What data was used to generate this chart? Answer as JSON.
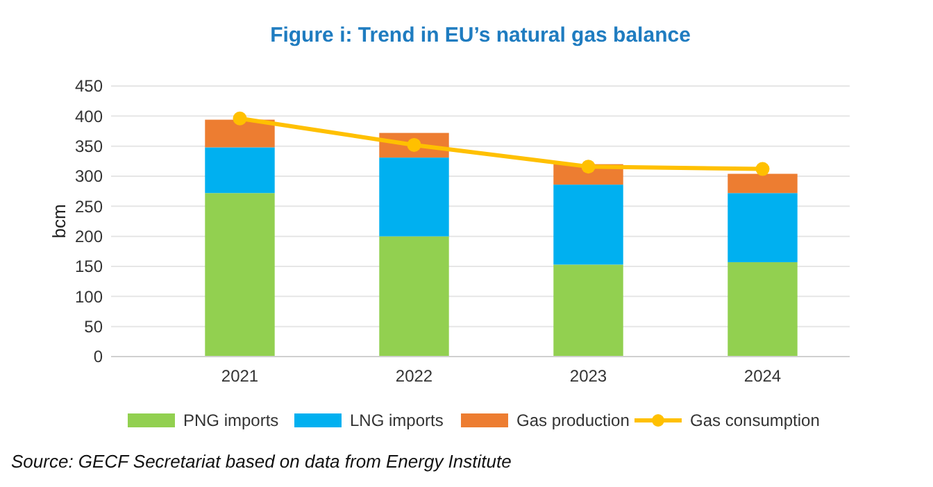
{
  "chart_data": {
    "type": "bar",
    "title": "Figure i: Trend in EU’s natural gas balance",
    "ylabel": "bcm",
    "categories": [
      "2021",
      "2022",
      "2023",
      "2024"
    ],
    "stacked": true,
    "series": [
      {
        "name": "PNG imports",
        "color": "#92d050",
        "values": [
          272,
          200,
          153,
          157
        ]
      },
      {
        "name": "LNG imports",
        "color": "#00b0f0",
        "values": [
          76,
          131,
          133,
          115
        ]
      },
      {
        "name": "Gas production",
        "color": "#ed7d31",
        "values": [
          46,
          41,
          34,
          32
        ]
      },
      {
        "name": "Gas consumption",
        "type": "line",
        "color": "#ffc000",
        "values": [
          396,
          352,
          316,
          312
        ]
      }
    ],
    "ylim": [
      0,
      450
    ],
    "yticks": [
      0,
      50,
      100,
      150,
      200,
      250,
      300,
      350,
      400,
      450
    ],
    "grid": "y",
    "legend": "bottom",
    "marker": "circle",
    "annotations": [
      "Source: GECF Secretariat based on data from Energy Institute"
    ]
  }
}
